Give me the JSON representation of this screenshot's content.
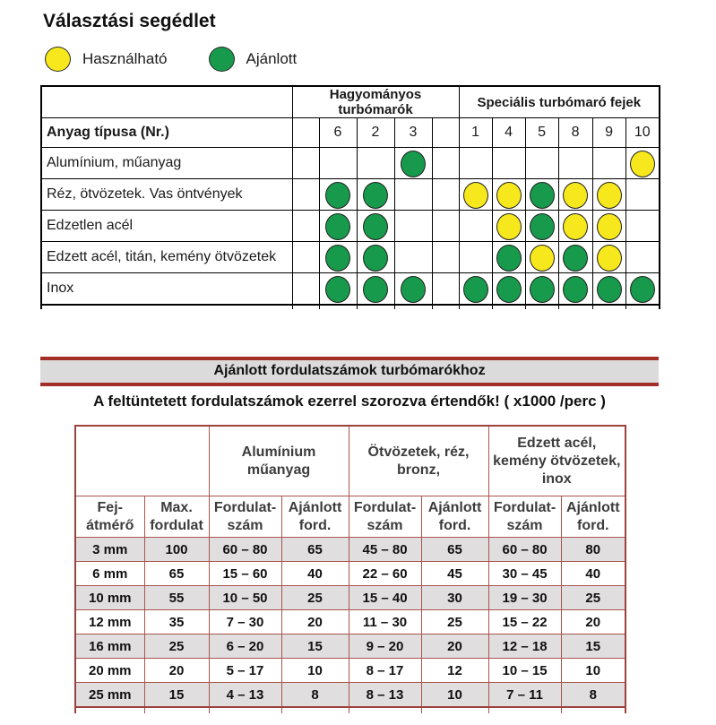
{
  "title": "Választási segédlet",
  "legend": {
    "usable_label": "Használható",
    "recommended_label": "Ajánlott",
    "usable_color": "#f6e81c",
    "recommended_color": "#179a4b"
  },
  "selection_table": {
    "group1": "Hagyományos turbómarók",
    "group2": "Speciális turbómaró fejek",
    "row_header": "Anyag típusa (Nr.)",
    "columns": [
      "6",
      "2",
      "3",
      "1",
      "4",
      "5",
      "8",
      "9",
      "10"
    ],
    "rows": [
      {
        "label": "Alumínium, műanyag",
        "dots": {
          "3": "recommended",
          "10": "usable"
        }
      },
      {
        "label": "Réz, ötvözetek. Vas öntvények",
        "dots": {
          "6": "recommended",
          "2": "recommended",
          "1": "usable",
          "4": "usable",
          "5": "recommended",
          "8": "usable",
          "9": "usable"
        }
      },
      {
        "label": "Edzetlen acél",
        "dots": {
          "6": "recommended",
          "2": "recommended",
          "4": "usable",
          "5": "recommended",
          "8": "usable",
          "9": "usable"
        }
      },
      {
        "label": "Edzett acél, titán, kemény ötvözetek",
        "dots": {
          "6": "recommended",
          "2": "recommended",
          "4": "recommended",
          "5": "usable",
          "8": "recommended",
          "9": "usable"
        }
      },
      {
        "label": "Inox",
        "dots": {
          "6": "recommended",
          "2": "recommended",
          "3": "recommended",
          "1": "recommended",
          "4": "recommended",
          "5": "recommended",
          "8": "recommended",
          "9": "recommended",
          "10": "recommended"
        }
      }
    ]
  },
  "speed_section": {
    "banner": "Ajánlott fordulatszámok turbómarókhoz",
    "note": "A feltüntetett fordulatszámok ezerrel szorozva értendők! ( x1000 /perc )",
    "table": {
      "group_headers": [
        "Alumínium\nműanyag",
        "Ötvözetek, réz,\nbronz,",
        "Edzett acél,\nkemény ötvözetek,\ninox"
      ],
      "col_headers": [
        "Fej-\nátmérő",
        "Max.\nfordulat",
        "Fordulat-\nszám",
        "Ajánlott\nford.",
        "Fordulat-\nszám",
        "Ajánlott\nford.",
        "Fordulat-\nszám",
        "Ajánlott\nford."
      ],
      "rows": [
        [
          "3 mm",
          "100",
          "60 – 80",
          "65",
          "45 – 80",
          "65",
          "60 – 80",
          "80"
        ],
        [
          "6 mm",
          "65",
          "15 – 60",
          "40",
          "22 – 60",
          "45",
          "30 – 45",
          "40"
        ],
        [
          "10 mm",
          "55",
          "10 – 50",
          "25",
          "15 – 40",
          "30",
          "19 – 30",
          "25"
        ],
        [
          "12 mm",
          "35",
          "7 – 30",
          "20",
          "11 – 30",
          "25",
          "15 – 22",
          "20"
        ],
        [
          "16 mm",
          "25",
          "6 – 20",
          "15",
          "9 – 20",
          "20",
          "12 – 18",
          "15"
        ],
        [
          "20 mm",
          "20",
          "5 – 17",
          "10",
          "8 – 17",
          "12",
          "10 – 15",
          "10"
        ],
        [
          "25 mm",
          "15",
          "4 – 13",
          "8",
          "8 – 13",
          "10",
          "7 – 11",
          "8"
        ]
      ]
    }
  }
}
